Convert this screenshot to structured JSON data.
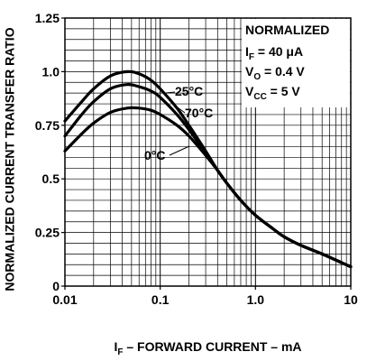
{
  "chart_data": {
    "type": "line",
    "xscale": "log",
    "xlim": [
      0.01,
      10
    ],
    "ylim": [
      0,
      1.25
    ],
    "grid": true,
    "xlabel": {
      "pre": "I",
      "sub": "F",
      "post": " – FORWARD CURRENT – mA"
    },
    "ylabel": "NORMALIZED CURRENT TRANSFER RATIO",
    "xticks": [
      {
        "value": 0.01,
        "label": "0.01"
      },
      {
        "value": 0.1,
        "label": "0.1"
      },
      {
        "value": 1,
        "label": "1.0"
      },
      {
        "value": 10,
        "label": "10"
      }
    ],
    "yticks": [
      {
        "value": 0,
        "label": "0"
      },
      {
        "value": 0.25,
        "label": "0.25"
      },
      {
        "value": 0.5,
        "label": "0.5"
      },
      {
        "value": 0.75,
        "label": "0.75"
      },
      {
        "value": 1.0,
        "label": "1.0"
      },
      {
        "value": 1.25,
        "label": "1.25"
      }
    ],
    "annotation": {
      "title": "NORMALIZED",
      "lines": [
        {
          "pre": "I",
          "sub": "F",
          "post": " = 40 μA"
        },
        {
          "pre": "V",
          "sub": "O",
          "post": " = 0.4 V"
        },
        {
          "pre": "V",
          "sub": "CC",
          "post": " = 5 V"
        }
      ]
    },
    "series": [
      {
        "name": "25°C",
        "x": [
          0.01,
          0.015,
          0.02,
          0.03,
          0.045,
          0.06,
          0.08,
          0.1,
          0.15,
          0.2,
          0.3,
          0.4,
          0.5,
          0.7,
          1.0,
          1.5,
          2,
          3,
          5,
          10
        ],
        "y": [
          0.77,
          0.86,
          0.92,
          0.98,
          1.0,
          0.99,
          0.96,
          0.92,
          0.83,
          0.75,
          0.63,
          0.54,
          0.48,
          0.4,
          0.33,
          0.27,
          0.23,
          0.19,
          0.15,
          0.09
        ]
      },
      {
        "name": "70°C",
        "x": [
          0.01,
          0.015,
          0.02,
          0.03,
          0.045,
          0.06,
          0.08,
          0.1,
          0.15,
          0.2,
          0.3,
          0.4,
          0.5,
          0.7,
          1.0,
          1.5,
          2,
          3,
          5,
          10
        ],
        "y": [
          0.7,
          0.8,
          0.86,
          0.92,
          0.94,
          0.93,
          0.91,
          0.88,
          0.8,
          0.73,
          0.62,
          0.54,
          0.48,
          0.4,
          0.33,
          0.27,
          0.23,
          0.19,
          0.15,
          0.09
        ]
      },
      {
        "name": "0°C",
        "x": [
          0.01,
          0.015,
          0.02,
          0.03,
          0.045,
          0.06,
          0.08,
          0.1,
          0.15,
          0.2,
          0.3,
          0.4,
          0.5,
          0.7,
          1.0,
          1.5,
          2,
          3,
          5,
          10
        ],
        "y": [
          0.63,
          0.71,
          0.76,
          0.81,
          0.83,
          0.83,
          0.82,
          0.8,
          0.75,
          0.7,
          0.61,
          0.54,
          0.48,
          0.4,
          0.33,
          0.27,
          0.23,
          0.19,
          0.15,
          0.09
        ]
      }
    ],
    "colors": {
      "line": "#000000",
      "grid": "#000000",
      "background": "#ffffff"
    }
  }
}
